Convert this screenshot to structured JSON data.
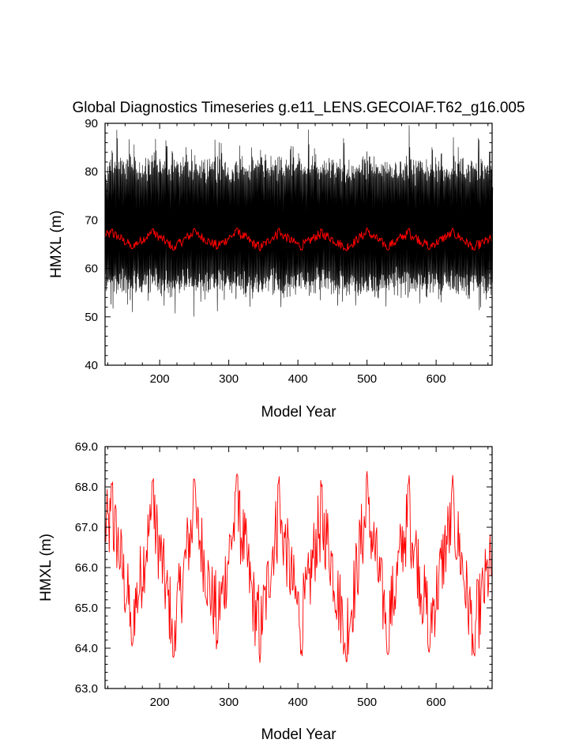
{
  "title": "Global Diagnostics Timeseries g.e11_LENS.GECOIAF.T62_g16.005",
  "colors": {
    "raw": "#000000",
    "mean": "#ff0000",
    "frame": "#000000"
  },
  "chart_data": [
    {
      "type": "line",
      "title": "Global Diagnostics Timeseries g.e11_LENS.GECOIAF.T62_g16.005",
      "xlabel": "Model Year",
      "ylabel": "HMXL (m)",
      "xlim": [
        121,
        681
      ],
      "ylim": [
        40,
        90
      ],
      "x_ticks": [
        200,
        300,
        400,
        500,
        600
      ],
      "x_tick_labels": [
        "200",
        "300",
        "400",
        "500",
        "600"
      ],
      "y_ticks": [
        40,
        50,
        60,
        70,
        80,
        90
      ],
      "y_tick_labels": [
        "40",
        "50",
        "60",
        "70",
        "80",
        "90"
      ],
      "grid": false,
      "series": [
        {
          "color": "#000000",
          "x_range": [
            121,
            681
          ],
          "sampling": "monthly",
          "envelope": {
            "min_approx": 50,
            "max_approx": 89,
            "typical_low": 55,
            "typical_high": 82
          }
        },
        {
          "color": "#ff0000",
          "x_range": [
            121,
            681
          ],
          "sampling": "annual",
          "cycle_period_years": 62,
          "range_approx": [
            63.7,
            68.4
          ]
        }
      ]
    },
    {
      "type": "line",
      "title": "",
      "xlabel": "Model Year",
      "ylabel": "HMXL (m)",
      "xlim": [
        121,
        681
      ],
      "ylim": [
        63.0,
        69.0
      ],
      "x_ticks": [
        200,
        300,
        400,
        500,
        600
      ],
      "x_tick_labels": [
        "200",
        "300",
        "400",
        "500",
        "600"
      ],
      "y_ticks": [
        63,
        64,
        65,
        66,
        67,
        68,
        69
      ],
      "y_tick_labels": [
        "63.0",
        "64.0",
        "65.0",
        "66.0",
        "67.0",
        "68.0",
        "69.0"
      ],
      "grid": false,
      "series": [
        {
          "color": "#ff0000",
          "x_range": [
            121,
            681
          ],
          "sampling": "annual",
          "cycle_period_years": 62,
          "peak_years": [
            131,
            190,
            250,
            312,
            372,
            434,
            500,
            560,
            624
          ],
          "trough_years": [
            160,
            220,
            283,
            345,
            405,
            470,
            530,
            590,
            655
          ],
          "peak_values": [
            68.3,
            68.3,
            68.3,
            68.4,
            68.3,
            68.3,
            68.4,
            68.3,
            68.3
          ],
          "trough_values": [
            63.9,
            63.7,
            63.9,
            63.6,
            63.8,
            63.6,
            63.8,
            63.8,
            63.6
          ]
        }
      ]
    }
  ]
}
